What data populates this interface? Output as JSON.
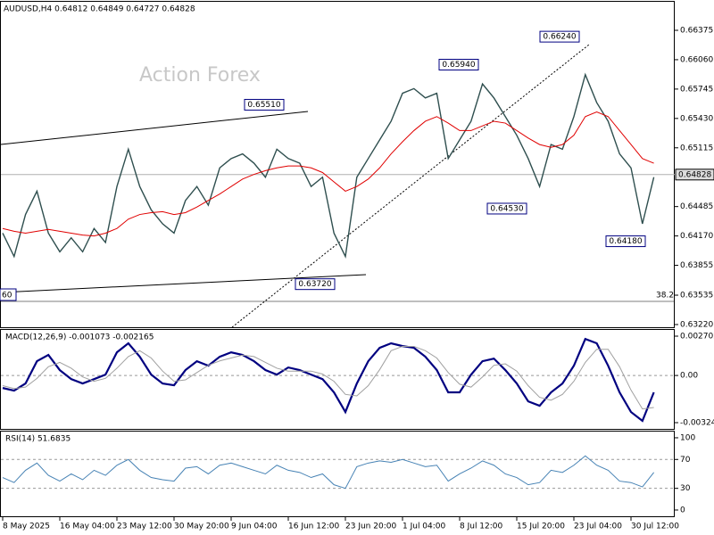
{
  "chart_data": {
    "type": "line",
    "title": "AUDUSD,H4  0.64812 0.64849 0.64727 0.64828",
    "watermark": "Action Forex",
    "categories": [
      "8 May 2025",
      null,
      null,
      null,
      null,
      "16 May 04:00",
      null,
      null,
      null,
      null,
      "23 May 12:00",
      null,
      null,
      null,
      null,
      "30 May 20:00",
      null,
      null,
      null,
      null,
      "9 Jun 04:00",
      null,
      null,
      null,
      null,
      "16 Jun 12:00",
      null,
      null,
      null,
      null,
      "23 Jun 20:00",
      null,
      null,
      null,
      null,
      "1 Jul 04:00",
      null,
      null,
      null,
      null,
      "8 Jul 12:00",
      null,
      null,
      null,
      null,
      "15 Jul 20:00",
      null,
      null,
      null,
      null,
      "23 Jul 04:00",
      null,
      null,
      null,
      null,
      "30 Jul 12:00",
      null,
      null
    ],
    "series": [
      {
        "name": "AUDUSD",
        "color": "#2f4f4f",
        "values": [
          0.642,
          0.6395,
          0.644,
          0.6465,
          0.642,
          0.64,
          0.6415,
          0.64,
          0.6425,
          0.641,
          0.647,
          0.651,
          0.647,
          0.6445,
          0.643,
          0.642,
          0.6455,
          0.647,
          0.645,
          0.649,
          0.65,
          0.6505,
          0.6495,
          0.648,
          0.651,
          0.65,
          0.6495,
          0.647,
          0.648,
          0.642,
          0.6395,
          0.648,
          0.65,
          0.652,
          0.654,
          0.657,
          0.6575,
          0.6565,
          0.657,
          0.65,
          0.652,
          0.654,
          0.658,
          0.6565,
          0.6545,
          0.6525,
          0.65,
          0.647,
          0.6515,
          0.651,
          0.6545,
          0.659,
          0.656,
          0.654,
          0.6505,
          0.649,
          0.643,
          0.648
        ]
      },
      {
        "name": "MA",
        "color": "#e00000",
        "values": [
          0.6425,
          0.6422,
          0.642,
          0.6422,
          0.6424,
          0.6422,
          0.642,
          0.6418,
          0.6417,
          0.642,
          0.6425,
          0.6435,
          0.644,
          0.6442,
          0.6443,
          0.644,
          0.6442,
          0.6448,
          0.6455,
          0.6462,
          0.647,
          0.6478,
          0.6483,
          0.6487,
          0.649,
          0.6492,
          0.6492,
          0.649,
          0.6485,
          0.6475,
          0.6465,
          0.647,
          0.6478,
          0.649,
          0.6505,
          0.6518,
          0.653,
          0.654,
          0.6545,
          0.6538,
          0.653,
          0.653,
          0.6535,
          0.654,
          0.6538,
          0.653,
          0.6522,
          0.6515,
          0.6512,
          0.6515,
          0.6525,
          0.6545,
          0.655,
          0.6545,
          0.653,
          0.6515,
          0.65,
          0.6495
        ]
      }
    ],
    "ylim": [
      0.63191,
      0.66681
    ],
    "yticks": [
      {
        "value": 0.6322,
        "label": "0.63220"
      },
      0.63535,
      0.63855,
      {
        "value": 0.6417,
        "label": "0.64170"
      },
      0.64485,
      0.65115,
      {
        "value": 0.6543,
        "label": "0.65430"
      },
      0.65745,
      {
        "value": 0.6606,
        "label": "0.66060"
      },
      0.66375
    ],
    "current_price": {
      "value": 0.64828,
      "label": "0.64828"
    },
    "annotations": [
      {
        "value": 0.6551,
        "label": "0.65510"
      },
      {
        "value": 0.6624,
        "label": "0.66240"
      },
      {
        "value": 0.6594,
        "label": "0.65940"
      },
      {
        "value": 0.6453,
        "label": "0.64530"
      },
      {
        "value": 0.6418,
        "label": "0.64180"
      },
      {
        "value": 0.6372,
        "label": "0.63720"
      }
    ],
    "edge_label": "60",
    "fib_label": "38.2",
    "macd": {
      "title": "MACD(12,26,9) -0.001073 -0.002165",
      "ylim": [
        -0.00367,
        0.00313
      ],
      "yticks": [
        -0.003241,
        {
          "value": 0,
          "label": "0.00"
        },
        0.002702
      ],
      "series": [
        {
          "name": "MACD",
          "color": "#000080",
          "values": [
            -0.00086,
            -0.00104,
            -0.00055,
            0.00098,
            0.00141,
            0.00037,
            -0.00025,
            -0.00055,
            -0.00025,
            6e-05,
            0.00159,
            0.00221,
            0.00129,
            6e-05,
            -0.00055,
            -0.00067,
            0.00037,
            0.00098,
            0.00067,
            0.00129,
            0.00159,
            0.00141,
            0.00098,
            0.00037,
            6e-05,
            0.00055,
            0.00037,
            6e-05,
            -0.00025,
            -0.00116,
            -0.00251,
            -0.00055,
            0.00098,
            0.0019,
            0.00221,
            0.00202,
            0.0019,
            0.00129,
            0.00037,
            -0.00116,
            -0.00116,
            6e-05,
            0.00098,
            0.00116,
            0.00037,
            -0.00055,
            -0.00178,
            -0.00208,
            -0.00116,
            -0.00055,
            0.00067,
            0.00251,
            0.00221,
            0.00067,
            -0.00116,
            -0.00251,
            -0.00312,
            -0.00116
          ]
        },
        {
          "name": "Signal",
          "color": "#a0a0a0",
          "values": [
            -0.0007,
            -0.0009,
            -0.0008,
            -0.0002,
            0.0006,
            0.0009,
            0.0005,
            -0.0001,
            -0.0004,
            -0.0002,
            0.0005,
            0.0013,
            0.0017,
            0.0012,
            0.0003,
            -0.0004,
            -0.0003,
            0.0002,
            0.0007,
            0.001,
            0.0012,
            0.0014,
            0.0013,
            0.0009,
            0.0005,
            0.0003,
            0.0003,
            0.0003,
            0.0001,
            -0.0004,
            -0.0013,
            -0.0014,
            -0.0007,
            0.0004,
            0.0017,
            0.002,
            0.002,
            0.0017,
            0.0012,
            0.0002,
            -0.0006,
            -0.0008,
            -0.0001,
            0.0007,
            0.0008,
            0.0003,
            -0.0007,
            -0.0015,
            -0.0017,
            -0.0013,
            -0.0004,
            0.0009,
            0.0018,
            0.0018,
            0.0006,
            -0.001,
            -0.0023,
            -0.0022
          ]
        }
      ]
    },
    "rsi": {
      "title": "RSI(14) 51.6835",
      "ylim": [
        -9.9,
        108.6
      ],
      "yticks": [
        0,
        30,
        70,
        100
      ],
      "color": "#4682b4",
      "values": [
        45,
        38,
        55,
        65,
        48,
        40,
        50,
        42,
        55,
        48,
        62,
        70,
        55,
        45,
        42,
        40,
        58,
        60,
        50,
        62,
        65,
        60,
        55,
        50,
        62,
        55,
        52,
        45,
        50,
        35,
        30,
        60,
        65,
        68,
        66,
        70,
        65,
        60,
        62,
        40,
        50,
        58,
        68,
        62,
        50,
        45,
        35,
        38,
        55,
        52,
        62,
        75,
        62,
        55,
        40,
        38,
        32,
        52
      ]
    }
  }
}
